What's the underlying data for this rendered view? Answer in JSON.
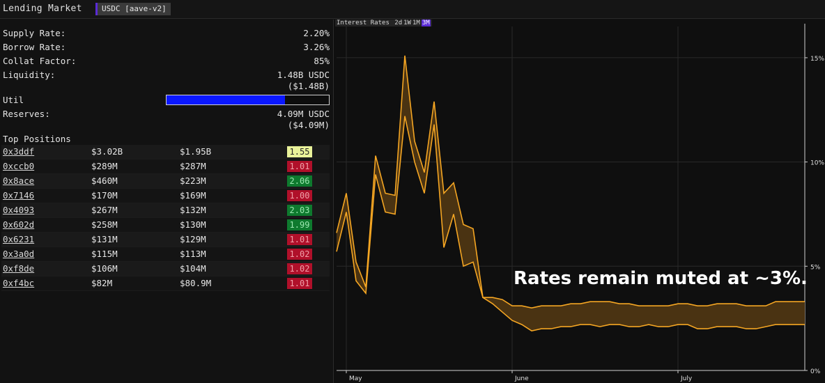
{
  "header": {
    "title": "Lending Market",
    "market": "USDC [aave-v2]"
  },
  "stats": {
    "supply_rate": {
      "label": "Supply Rate:",
      "value": "2.20%"
    },
    "borrow_rate": {
      "label": "Borrow Rate:",
      "value": "3.26%"
    },
    "collat_factor": {
      "label": "Collat Factor:",
      "value": "85%"
    },
    "liquidity": {
      "label": "Liquidity:",
      "value": "1.48B USDC",
      "usd": "($1.48B)"
    },
    "util": {
      "label": "Util",
      "fraction": 0.73
    },
    "reserves": {
      "label": "Reserves:",
      "value": "4.09M USDC",
      "usd": "($4.09M)"
    }
  },
  "positions": {
    "title": "Top Positions",
    "rows": [
      {
        "address": "0x3ddf",
        "supply": "$3.02B",
        "borrow": "$1.95B",
        "health": "1.55",
        "health_bg": "#e9f29a",
        "health_fg": "#222222"
      },
      {
        "address": "0xccb0",
        "supply": "$289M",
        "borrow": "$287M",
        "health": "1.01",
        "health_bg": "#b0102a",
        "health_fg": "#f0a0a8"
      },
      {
        "address": "0x8ace",
        "supply": "$460M",
        "borrow": "$223M",
        "health": "2.06",
        "health_bg": "#0e7a2e",
        "health_fg": "#9ce8b0"
      },
      {
        "address": "0x7146",
        "supply": "$170M",
        "borrow": "$169M",
        "health": "1.00",
        "health_bg": "#b0102a",
        "health_fg": "#f0a0a8"
      },
      {
        "address": "0x4093",
        "supply": "$267M",
        "borrow": "$132M",
        "health": "2.03",
        "health_bg": "#0e7a2e",
        "health_fg": "#9ce8b0"
      },
      {
        "address": "0x602d",
        "supply": "$258M",
        "borrow": "$130M",
        "health": "1.99",
        "health_bg": "#0e7a2e",
        "health_fg": "#9ce8b0"
      },
      {
        "address": "0x6231",
        "supply": "$131M",
        "borrow": "$129M",
        "health": "1.01",
        "health_bg": "#b0102a",
        "health_fg": "#f0a0a8"
      },
      {
        "address": "0x3a0d",
        "supply": "$115M",
        "borrow": "$113M",
        "health": "1.02",
        "health_bg": "#b0102a",
        "health_fg": "#f0a0a8"
      },
      {
        "address": "0xf8de",
        "supply": "$106M",
        "borrow": "$104M",
        "health": "1.02",
        "health_bg": "#b0102a",
        "health_fg": "#f0a0a8"
      },
      {
        "address": "0xf4bc",
        "supply": "$82M",
        "borrow": "$80.9M",
        "health": "1.01",
        "health_bg": "#b0102a",
        "health_fg": "#f0a0a8"
      }
    ]
  },
  "chart_header": {
    "label": "Interest Rates",
    "timeframes": [
      "2d",
      "1W",
      "1M",
      "3M"
    ],
    "active": "3M"
  },
  "annotation": "Rates remain muted at ~3%.",
  "chart_data": {
    "type": "area",
    "title": "Interest Rates",
    "x_tick_labels": [
      "May",
      "June",
      "July"
    ],
    "y_tick_labels": [
      "0%",
      "5%",
      "10%",
      "15%"
    ],
    "ylim": [
      0,
      16.5
    ],
    "grid": true,
    "colors": {
      "line": "#f5a623",
      "fill": "#4a3312",
      "grid": "#2a2a2a"
    },
    "series": [
      {
        "name": "",
        "x": [
          0,
          2,
          4,
          6,
          8,
          10,
          12,
          14,
          16,
          18,
          20,
          22,
          24,
          26,
          28,
          30,
          32,
          34,
          36,
          38,
          40,
          42,
          44,
          46,
          48,
          50,
          52,
          54,
          56,
          58,
          60,
          62,
          64,
          66,
          68,
          70,
          72,
          74,
          76,
          78,
          80,
          82,
          84,
          86,
          88,
          90,
          92,
          94,
          96
        ],
        "values": [
          6.6,
          8.5,
          5.2,
          4.0,
          10.3,
          8.5,
          8.4,
          15.1,
          11.0,
          9.5,
          12.9,
          8.5,
          9.0,
          7.0,
          6.8,
          3.5,
          3.5,
          3.4,
          3.1,
          3.1,
          3.0,
          3.1,
          3.1,
          3.1,
          3.2,
          3.2,
          3.3,
          3.3,
          3.3,
          3.2,
          3.2,
          3.1,
          3.1,
          3.1,
          3.1,
          3.2,
          3.2,
          3.1,
          3.1,
          3.2,
          3.2,
          3.2,
          3.1,
          3.1,
          3.1,
          3.3,
          3.3,
          3.3,
          3.3
        ]
      },
      {
        "name": "",
        "x": [
          0,
          2,
          4,
          6,
          8,
          10,
          12,
          14,
          16,
          18,
          20,
          22,
          24,
          26,
          28,
          30,
          32,
          34,
          36,
          38,
          40,
          42,
          44,
          46,
          48,
          50,
          52,
          54,
          56,
          58,
          60,
          62,
          64,
          66,
          68,
          70,
          72,
          74,
          76,
          78,
          80,
          82,
          84,
          86,
          88,
          90,
          92,
          94,
          96
        ],
        "values": [
          5.7,
          7.6,
          4.3,
          3.7,
          9.4,
          7.6,
          7.5,
          12.2,
          10.0,
          8.5,
          11.8,
          5.9,
          7.5,
          5.0,
          5.2,
          3.5,
          3.2,
          2.8,
          2.4,
          2.2,
          1.9,
          2.0,
          2.0,
          2.1,
          2.1,
          2.2,
          2.2,
          2.1,
          2.2,
          2.2,
          2.1,
          2.1,
          2.2,
          2.1,
          2.1,
          2.2,
          2.2,
          2.0,
          2.0,
          2.1,
          2.1,
          2.1,
          2.0,
          2.0,
          2.1,
          2.2,
          2.2,
          2.2,
          2.2
        ]
      }
    ]
  }
}
